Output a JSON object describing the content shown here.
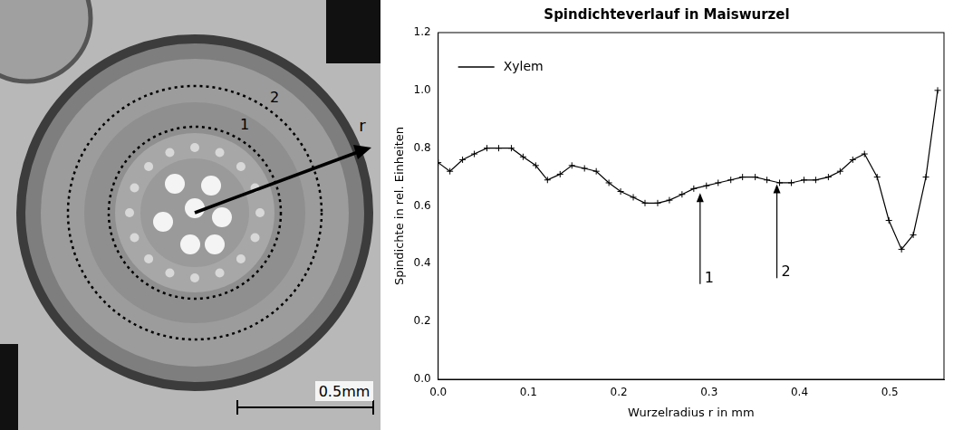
{
  "image": {
    "circle_labels": [
      "1",
      "2"
    ],
    "arrow_label": "r",
    "scale_bar": "0.5mm"
  },
  "chart_data": {
    "type": "line",
    "title": "Spindichteverlauf in Maiswurzel",
    "x_label": "Wurzelradius r in mm",
    "y_label": "Spindichte in rel. Einheiten",
    "series": [
      {
        "name": "Xylem",
        "color": "#000000",
        "marker": "plus",
        "line_style": "solid",
        "x": [
          0.0,
          0.013,
          0.027,
          0.04,
          0.054,
          0.067,
          0.081,
          0.094,
          0.108,
          0.121,
          0.135,
          0.148,
          0.162,
          0.175,
          0.189,
          0.202,
          0.216,
          0.229,
          0.243,
          0.256,
          0.27,
          0.283,
          0.297,
          0.31,
          0.324,
          0.337,
          0.351,
          0.364,
          0.378,
          0.391,
          0.405,
          0.418,
          0.432,
          0.445,
          0.459,
          0.472,
          0.486,
          0.499,
          0.513,
          0.526,
          0.54,
          0.553
        ],
        "values": [
          0.75,
          0.72,
          0.76,
          0.78,
          0.8,
          0.8,
          0.8,
          0.77,
          0.74,
          0.69,
          0.71,
          0.74,
          0.73,
          0.72,
          0.68,
          0.65,
          0.63,
          0.61,
          0.61,
          0.62,
          0.64,
          0.66,
          0.67,
          0.68,
          0.69,
          0.7,
          0.7,
          0.69,
          0.68,
          0.68,
          0.69,
          0.69,
          0.7,
          0.72,
          0.76,
          0.78,
          0.7,
          0.55,
          0.45,
          0.5,
          0.7,
          1.0
        ]
      }
    ],
    "xlim": [
      0,
      0.56
    ],
    "xticks": [
      {
        "value": 0,
        "label": "0.0"
      },
      0.1,
      0.2,
      0.3,
      0.4,
      0.5
    ],
    "ylim": [
      0,
      1.2
    ],
    "yticks": [
      {
        "value": 0,
        "label": "0.0"
      },
      0.2,
      0.4,
      0.6,
      0.8,
      {
        "value": 1,
        "label": "1.0"
      },
      1.2
    ],
    "grid": false,
    "legend": "upper left",
    "annotations": [
      {
        "text": "1",
        "x": 0.29,
        "y_base": 0.33,
        "y_tip": 0.645
      },
      {
        "text": "2",
        "x": 0.375,
        "y_base": 0.35,
        "y_tip": 0.675
      }
    ]
  }
}
